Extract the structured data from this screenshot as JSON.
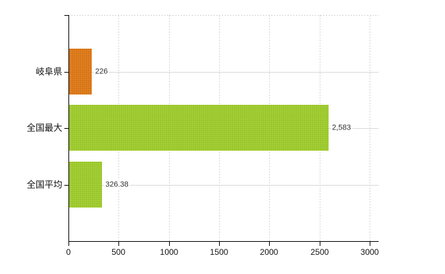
{
  "chart_data": {
    "type": "bar",
    "orientation": "horizontal",
    "title": "",
    "categories": [
      "岐阜県",
      "全国最大",
      "全国平均"
    ],
    "series": [
      {
        "values": [
          226,
          2583,
          326.38
        ],
        "value_labels": [
          "226",
          "2,583",
          "326.38"
        ],
        "bar_colors": [
          "#e28120",
          "#a7cf38",
          "#a7cf38"
        ],
        "bar_dot_colors": [
          "#cd6d14",
          "#8fbf25",
          "#8fbf25"
        ]
      }
    ],
    "xlim": [
      0,
      3000
    ],
    "x_ticks": [
      0,
      500,
      1000,
      1500,
      2000,
      2500,
      3000
    ],
    "x_tick_labels": [
      "0",
      "500",
      "1000",
      "1500",
      "2000",
      "2500",
      "3000"
    ],
    "grid": {
      "vertical": "dashed",
      "horizontal": "solid",
      "top_border": "dashed"
    },
    "legend_position": "none",
    "plot_background": "#ffffff"
  },
  "colors": {
    "axis": "#000000",
    "grid_horizontal": "#d9d9d9",
    "grid_vertical": "#d4d4d4",
    "value_label_text": "#2e2e2e",
    "axis_label_text": "#111111",
    "background": "#ffffff"
  }
}
